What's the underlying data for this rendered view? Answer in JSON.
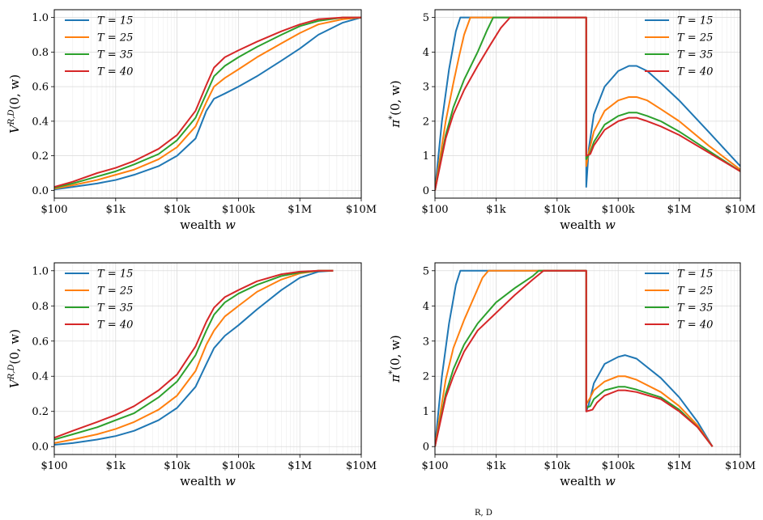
{
  "colors": {
    "T15": "#1f77b4",
    "T25": "#ff7f0e",
    "T35": "#2ca02c",
    "T40": "#d62728"
  },
  "caption_fragment": "R, D",
  "chart_data": [
    {
      "type": "line",
      "xscale": "log",
      "xlim": [
        100,
        10000000
      ],
      "ylim": [
        0,
        1.0
      ],
      "xticks": [
        "$100",
        "$1k",
        "$10k",
        "$100k",
        "$1M",
        "$10M"
      ],
      "yticks": [
        "0.0",
        "0.2",
        "0.4",
        "0.6",
        "0.8",
        "1.0"
      ],
      "xlabel": "wealth w",
      "ylabel": "V^{R,D}(0, w)",
      "grid": true,
      "legend_position": "top-left",
      "series": [
        {
          "name": "T = 15",
          "color_key": "T15",
          "x": [
            100,
            200,
            500,
            1000,
            2000,
            5000,
            10000,
            20000,
            30000,
            40000,
            60000,
            100000,
            200000,
            500000,
            1000000,
            2000000,
            5000000,
            10000000
          ],
          "y": [
            0.005,
            0.02,
            0.04,
            0.06,
            0.09,
            0.14,
            0.2,
            0.3,
            0.46,
            0.53,
            0.56,
            0.6,
            0.66,
            0.75,
            0.82,
            0.9,
            0.97,
            1.0
          ]
        },
        {
          "name": "T = 25",
          "color_key": "T25",
          "x": [
            100,
            200,
            500,
            1000,
            2000,
            5000,
            10000,
            20000,
            30000,
            40000,
            60000,
            100000,
            200000,
            500000,
            1000000,
            2000000,
            5000000,
            10000000
          ],
          "y": [
            0.01,
            0.03,
            0.06,
            0.09,
            0.12,
            0.18,
            0.25,
            0.37,
            0.51,
            0.6,
            0.65,
            0.7,
            0.77,
            0.85,
            0.91,
            0.96,
            0.99,
            1.0
          ]
        },
        {
          "name": "T = 35",
          "color_key": "T35",
          "x": [
            100,
            200,
            500,
            1000,
            2000,
            5000,
            10000,
            20000,
            30000,
            40000,
            60000,
            100000,
            200000,
            500000,
            1000000,
            2000000,
            5000000,
            10000000
          ],
          "y": [
            0.015,
            0.04,
            0.08,
            0.11,
            0.15,
            0.21,
            0.29,
            0.42,
            0.56,
            0.66,
            0.72,
            0.77,
            0.83,
            0.9,
            0.95,
            0.98,
            1.0,
            1.0
          ]
        },
        {
          "name": "T = 40",
          "color_key": "T40",
          "x": [
            100,
            200,
            500,
            1000,
            2000,
            5000,
            10000,
            20000,
            30000,
            40000,
            60000,
            100000,
            200000,
            500000,
            1000000,
            2000000,
            5000000,
            10000000
          ],
          "y": [
            0.02,
            0.05,
            0.1,
            0.13,
            0.17,
            0.24,
            0.32,
            0.46,
            0.61,
            0.71,
            0.77,
            0.81,
            0.86,
            0.92,
            0.96,
            0.99,
            1.0,
            1.0
          ]
        }
      ]
    },
    {
      "type": "line",
      "xscale": "log",
      "xlim": [
        100,
        10000000
      ],
      "ylim": [
        0,
        5
      ],
      "xticks": [
        "$100",
        "$1k",
        "$10k",
        "$100k",
        "$1M",
        "$10M"
      ],
      "yticks": [
        "0",
        "1",
        "2",
        "3",
        "4",
        "5"
      ],
      "xlabel": "wealth w",
      "ylabel": "π*(0, w)",
      "grid": true,
      "legend_position": "top-right",
      "series": [
        {
          "name": "T = 15",
          "color_key": "T15",
          "x": [
            100,
            130,
            170,
            220,
            260,
            30000,
            30001,
            33000,
            40000,
            60000,
            100000,
            150000,
            200000,
            300000,
            500000,
            1000000,
            3000000,
            10000000
          ],
          "y": [
            0,
            2.0,
            3.5,
            4.6,
            5,
            5,
            0.1,
            1.2,
            2.2,
            3.0,
            3.45,
            3.6,
            3.6,
            3.45,
            3.1,
            2.6,
            1.7,
            0.7
          ]
        },
        {
          "name": "T = 25",
          "color_key": "T25",
          "x": [
            100,
            150,
            200,
            250,
            300,
            380,
            30000,
            30001,
            33000,
            40000,
            60000,
            100000,
            150000,
            200000,
            300000,
            500000,
            1000000,
            3000000,
            10000000
          ],
          "y": [
            0,
            2.0,
            3.1,
            3.9,
            4.5,
            5,
            5,
            0.7,
            1.1,
            1.7,
            2.3,
            2.6,
            2.7,
            2.7,
            2.6,
            2.35,
            2.0,
            1.3,
            0.6
          ]
        },
        {
          "name": "T = 35",
          "color_key": "T35",
          "x": [
            100,
            150,
            200,
            300,
            500,
            700,
            900,
            30000,
            30001,
            35000,
            40000,
            60000,
            100000,
            150000,
            200000,
            300000,
            500000,
            1000000,
            3000000,
            10000000
          ],
          "y": [
            0,
            1.6,
            2.4,
            3.2,
            4.0,
            4.6,
            5,
            5,
            0.9,
            1.1,
            1.4,
            1.9,
            2.15,
            2.25,
            2.25,
            2.15,
            2.0,
            1.7,
            1.15,
            0.55
          ]
        },
        {
          "name": "T = 40",
          "color_key": "T40",
          "x": [
            100,
            150,
            200,
            300,
            500,
            800,
            1200,
            1700,
            30000,
            30001,
            35000,
            40000,
            60000,
            100000,
            150000,
            200000,
            300000,
            500000,
            1000000,
            3000000,
            10000000
          ],
          "y": [
            0,
            1.5,
            2.2,
            2.9,
            3.6,
            4.2,
            4.7,
            5,
            5,
            1.0,
            1.05,
            1.3,
            1.75,
            2.0,
            2.1,
            2.1,
            2.0,
            1.85,
            1.6,
            1.1,
            0.55
          ]
        }
      ]
    },
    {
      "type": "line",
      "xscale": "log",
      "xlim": [
        100,
        10000000
      ],
      "ylim": [
        0,
        1.0
      ],
      "xticks": [
        "$100",
        "$1k",
        "$10k",
        "$100k",
        "$1M",
        "$10M"
      ],
      "yticks": [
        "0.0",
        "0.2",
        "0.4",
        "0.6",
        "0.8",
        "1.0"
      ],
      "xlabel": "wealth w",
      "ylabel": "V^{R,D}(0, w)",
      "grid": true,
      "legend_position": "top-left",
      "series": [
        {
          "name": "T = 15",
          "color_key": "T15",
          "x": [
            100,
            200,
            500,
            1000,
            2000,
            5000,
            10000,
            20000,
            30000,
            40000,
            60000,
            100000,
            200000,
            500000,
            1000000,
            2000000,
            3500000
          ],
          "y": [
            0.01,
            0.02,
            0.04,
            0.06,
            0.09,
            0.15,
            0.22,
            0.34,
            0.47,
            0.56,
            0.63,
            0.69,
            0.78,
            0.89,
            0.96,
            0.995,
            1.0
          ]
        },
        {
          "name": "T = 25",
          "color_key": "T25",
          "x": [
            100,
            200,
            500,
            1000,
            2000,
            5000,
            10000,
            20000,
            30000,
            40000,
            60000,
            100000,
            200000,
            500000,
            1000000,
            2000000,
            3500000
          ],
          "y": [
            0.02,
            0.04,
            0.07,
            0.1,
            0.14,
            0.21,
            0.29,
            0.43,
            0.58,
            0.66,
            0.74,
            0.8,
            0.88,
            0.95,
            0.985,
            1.0,
            1.0
          ]
        },
        {
          "name": "T = 35",
          "color_key": "T35",
          "x": [
            100,
            200,
            500,
            1000,
            2000,
            5000,
            10000,
            20000,
            30000,
            40000,
            60000,
            100000,
            200000,
            500000,
            1000000,
            2000000,
            3500000
          ],
          "y": [
            0.04,
            0.07,
            0.11,
            0.15,
            0.19,
            0.28,
            0.37,
            0.52,
            0.66,
            0.75,
            0.82,
            0.87,
            0.92,
            0.97,
            0.99,
            1.0,
            1.0
          ]
        },
        {
          "name": "T = 40",
          "color_key": "T40",
          "x": [
            100,
            200,
            500,
            1000,
            2000,
            5000,
            10000,
            20000,
            30000,
            40000,
            60000,
            100000,
            200000,
            500000,
            1000000,
            2000000,
            3500000
          ],
          "y": [
            0.05,
            0.09,
            0.14,
            0.18,
            0.23,
            0.32,
            0.41,
            0.57,
            0.71,
            0.79,
            0.85,
            0.89,
            0.94,
            0.98,
            0.995,
            1.0,
            1.0
          ]
        }
      ]
    },
    {
      "type": "line",
      "xscale": "log",
      "xlim": [
        100,
        10000000
      ],
      "ylim": [
        0,
        5
      ],
      "xticks": [
        "$100",
        "$1k",
        "$10k",
        "$100k",
        "$1M",
        "$10M"
      ],
      "yticks": [
        "0",
        "1",
        "2",
        "3",
        "4",
        "5"
      ],
      "xlabel": "wealth w",
      "ylabel": "π*(0, w)",
      "grid": true,
      "legend_position": "top-right",
      "series": [
        {
          "name": "T = 15",
          "color_key": "T15",
          "x": [
            100,
            130,
            170,
            220,
            260,
            30000,
            30001,
            33000,
            40000,
            60000,
            100000,
            130000,
            200000,
            500000,
            1000000,
            2000000,
            3500000
          ],
          "y": [
            0,
            2.0,
            3.5,
            4.6,
            5,
            5,
            1.0,
            1.2,
            1.8,
            2.35,
            2.55,
            2.6,
            2.5,
            1.95,
            1.4,
            0.7,
            0
          ]
        },
        {
          "name": "T = 25",
          "color_key": "T25",
          "x": [
            100,
            150,
            200,
            300,
            450,
            600,
            750,
            30000,
            30001,
            35000,
            40000,
            60000,
            100000,
            130000,
            200000,
            500000,
            1000000,
            2000000,
            3500000
          ],
          "y": [
            0,
            1.9,
            2.8,
            3.6,
            4.3,
            4.8,
            5,
            5,
            1.2,
            1.4,
            1.6,
            1.85,
            2.0,
            2.0,
            1.9,
            1.55,
            1.15,
            0.6,
            0
          ]
        },
        {
          "name": "T = 35",
          "color_key": "T35",
          "x": [
            100,
            150,
            200,
            300,
            500,
            1000,
            2000,
            4000,
            5000,
            30000,
            30001,
            35000,
            40000,
            60000,
            100000,
            130000,
            200000,
            500000,
            1000000,
            2000000,
            3500000
          ],
          "y": [
            0,
            1.5,
            2.2,
            2.9,
            3.5,
            4.1,
            4.5,
            4.85,
            5,
            5,
            1.1,
            1.15,
            1.35,
            1.6,
            1.7,
            1.7,
            1.62,
            1.4,
            1.05,
            0.55,
            0
          ]
        },
        {
          "name": "T = 40",
          "color_key": "T40",
          "x": [
            100,
            150,
            200,
            300,
            500,
            1000,
            2000,
            4000,
            6000,
            30000,
            30001,
            38000,
            45000,
            60000,
            100000,
            130000,
            200000,
            500000,
            1000000,
            2000000,
            3500000
          ],
          "y": [
            0,
            1.4,
            2.0,
            2.7,
            3.3,
            3.8,
            4.3,
            4.75,
            5,
            5,
            1.0,
            1.05,
            1.25,
            1.45,
            1.6,
            1.6,
            1.55,
            1.35,
            1.0,
            0.55,
            0
          ]
        }
      ]
    }
  ]
}
